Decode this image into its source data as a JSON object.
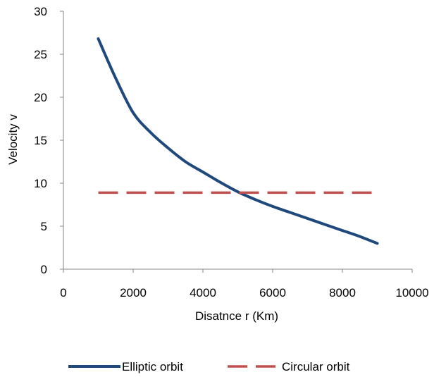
{
  "chart_data": {
    "type": "line",
    "title": "",
    "xlabel": "Disatnce r (Km)",
    "ylabel": "Velocity  v",
    "xlim": [
      0,
      10000
    ],
    "ylim": [
      0,
      30
    ],
    "x_ticks": [
      0,
      2000,
      4000,
      6000,
      8000,
      10000
    ],
    "y_ticks": [
      0,
      5,
      10,
      15,
      20,
      25,
      30
    ],
    "grid": false,
    "legend_position": "bottom",
    "series": [
      {
        "name": "Elliptic orbit",
        "color": "#1f497d",
        "style": "solid",
        "x": [
          1000,
          1500,
          2000,
          2500,
          3000,
          3500,
          4000,
          4500,
          5000,
          5500,
          6000,
          6500,
          7000,
          7500,
          8000,
          8500,
          9000
        ],
        "y": [
          26.8,
          22.2,
          18.2,
          15.9,
          14.1,
          12.5,
          11.3,
          10.1,
          9.0,
          8.1,
          7.3,
          6.6,
          5.9,
          5.2,
          4.5,
          3.8,
          3.0
        ]
      },
      {
        "name": "Circular orbit",
        "color": "#c0504d",
        "style": "dashed",
        "x": [
          1000,
          9000
        ],
        "y": [
          8.9,
          8.9
        ]
      }
    ]
  }
}
